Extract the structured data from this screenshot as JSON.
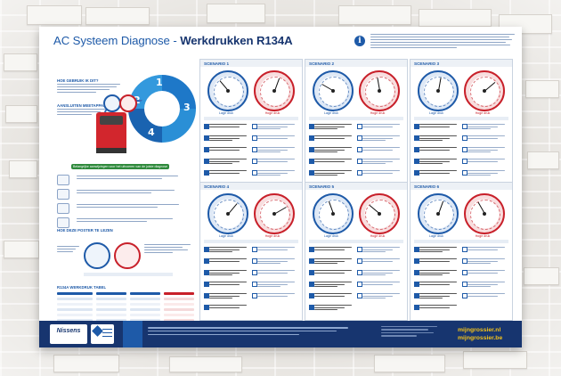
{
  "poster": {
    "title_main": "AC Systeem Diagnose - ",
    "title_bold": "Werkdrukken R134A",
    "info_icon": "info-icon"
  },
  "left": {
    "section1": "HOE GEBRUIK IK DIT?",
    "section2": "AANSLUITEN MEETAPPARATUUR",
    "section3": "HOE DEZE POSTER TE LEZEN",
    "section4": "R134A WERKDRUK TABEL",
    "wheel_steps": [
      "1",
      "2",
      "3",
      "4"
    ],
    "tip_bar": "Belangrijke aanwijzingen voor het uitvoeren van de juiste diagnose"
  },
  "scenarios": [
    {
      "title": "SCENARIO 1",
      "low_label": "Lage druk",
      "high_label": "Hoge druk",
      "low_angle": -40,
      "high_angle": 20
    },
    {
      "title": "SCENARIO 2",
      "low_label": "Lage druk",
      "high_label": "Hoge druk",
      "low_angle": -60,
      "high_angle": -10
    },
    {
      "title": "SCENARIO 3",
      "low_label": "Lage druk",
      "high_label": "Hoge druk",
      "low_angle": 10,
      "high_angle": 50
    },
    {
      "title": "SCENARIO 4",
      "low_label": "Lage druk",
      "high_label": "Hoge druk",
      "low_angle": 40,
      "high_angle": 60
    },
    {
      "title": "SCENARIO 5",
      "low_label": "Lage druk",
      "high_label": "Hoge druk",
      "low_angle": -20,
      "high_angle": -50
    },
    {
      "title": "SCENARIO 6",
      "low_label": "Lage druk",
      "high_label": "Hoge druk",
      "low_angle": 20,
      "high_angle": -30
    }
  ],
  "footer": {
    "brand": "Nissens",
    "site1": "mijngrossier.nl",
    "site2": "mijngrossier.be"
  },
  "colors": {
    "brand_blue": "#1e5aa8",
    "dark_blue": "#17356f",
    "red": "#c8202a",
    "accent_yellow": "#f3c21a",
    "green": "#2f8a3c"
  }
}
